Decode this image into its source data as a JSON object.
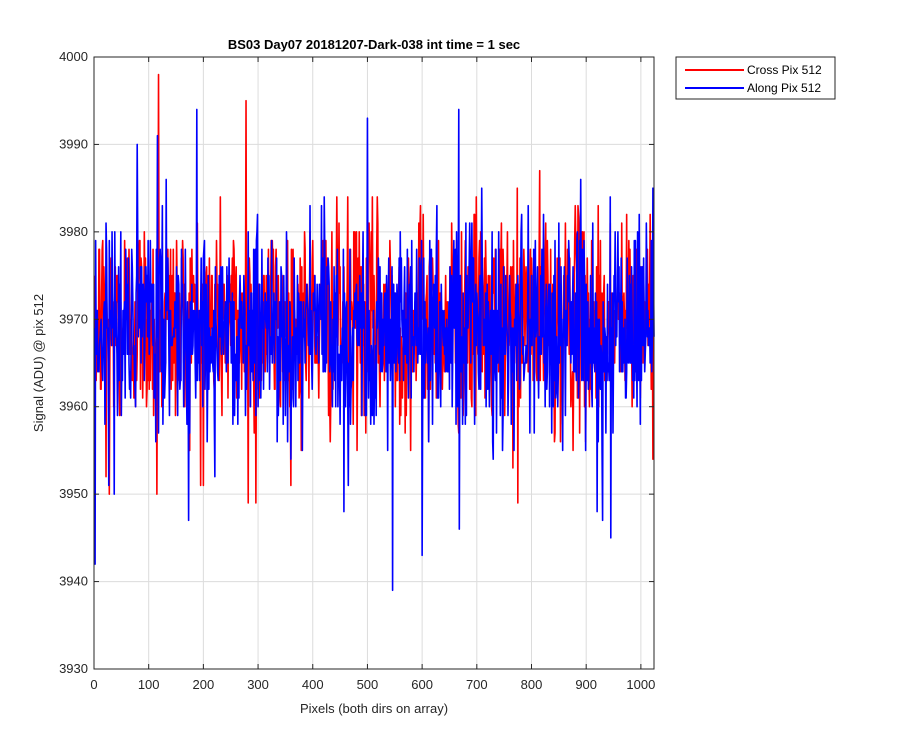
{
  "chart_data": {
    "type": "line",
    "title": "BS03 Day07 20181207-Dark-038 int time = 1 sec",
    "xlabel": "Pixels (both dirs on array)",
    "ylabel": "Signal (ADU) @ pix 512",
    "xlim": [
      0,
      1024
    ],
    "ylim": [
      3930,
      4000
    ],
    "xticks": [
      0,
      100,
      200,
      300,
      400,
      500,
      600,
      700,
      800,
      900,
      1000
    ],
    "yticks": [
      3930,
      3940,
      3950,
      3960,
      3970,
      3980,
      3990,
      4000
    ],
    "grid": true,
    "legend_position": "outside-top-right",
    "series": [
      {
        "name": "Cross Pix 512",
        "color": "#ff0000",
        "x_start": 1,
        "x_step": 1,
        "count": 1024,
        "mean": 3970,
        "std": 6,
        "min": 3949,
        "max": 3998,
        "highlights": [
          {
            "x": 1,
            "y": 3975
          },
          {
            "x": 22,
            "y": 3952
          },
          {
            "x": 28,
            "y": 3950
          },
          {
            "x": 115,
            "y": 3950
          },
          {
            "x": 118,
            "y": 3998
          },
          {
            "x": 200,
            "y": 3951
          },
          {
            "x": 278,
            "y": 3995
          },
          {
            "x": 282,
            "y": 3949
          },
          {
            "x": 296,
            "y": 3949
          },
          {
            "x": 775,
            "y": 3949
          }
        ]
      },
      {
        "name": "Along Pix 512",
        "color": "#0000ff",
        "x_start": 1,
        "x_step": 1,
        "count": 1024,
        "mean": 3969,
        "std": 6,
        "min": 3939,
        "max": 3994,
        "highlights": [
          {
            "x": 1,
            "y": 3969
          },
          {
            "x": 2,
            "y": 3942
          },
          {
            "x": 3,
            "y": 3979
          },
          {
            "x": 116,
            "y": 3991
          },
          {
            "x": 188,
            "y": 3994
          },
          {
            "x": 457,
            "y": 3948
          },
          {
            "x": 500,
            "y": 3993
          },
          {
            "x": 546,
            "y": 3939
          },
          {
            "x": 600,
            "y": 3943
          },
          {
            "x": 667,
            "y": 3994
          },
          {
            "x": 668,
            "y": 3946
          },
          {
            "x": 920,
            "y": 3948
          },
          {
            "x": 930,
            "y": 3947
          },
          {
            "x": 945,
            "y": 3945
          }
        ]
      }
    ]
  }
}
